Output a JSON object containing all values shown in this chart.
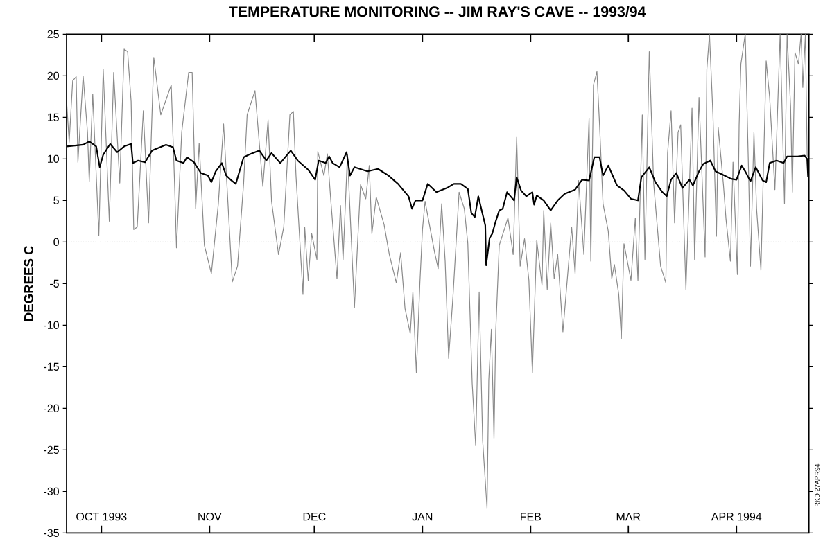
{
  "chart_data": {
    "type": "line",
    "title": "TEMPERATURE MONITORING -- JIM RAY'S CAVE -- 1993/94",
    "ylabel": "DEGREES C",
    "annotations": [
      "RKD 27APR94"
    ],
    "xlim": [
      "1993-09-21",
      "1994-04-21T18:00"
    ],
    "xticks": [
      {
        "value": "1993-10-01",
        "label": "OCT 1993"
      },
      {
        "value": "1993-11-01",
        "label": "NOV"
      },
      {
        "value": "1993-12-01",
        "label": "DEC"
      },
      {
        "value": "1994-01-01",
        "label": "JAN"
      },
      {
        "value": "1994-02-01",
        "label": "FEB"
      },
      {
        "value": "1994-03-01",
        "label": "MAR"
      },
      {
        "value": "1994-04-01",
        "label": "APR 1994"
      }
    ],
    "ylim": [
      -35,
      25
    ],
    "yticks": [
      -35,
      -30,
      -25,
      -20,
      -15,
      -10,
      -5,
      0,
      5,
      10,
      15,
      20,
      25
    ],
    "ref_lines": [
      {
        "axis": "y",
        "value": 0,
        "color": "#808080",
        "line_style": "dotted"
      }
    ],
    "series": [
      {
        "color": "#8a8a8a",
        "x": [
          "1993-09-21",
          "1993-09-21T18:00",
          "1993-09-22T18:00",
          "1993-09-23T18:00",
          "1993-09-24T06:00",
          "1993-09-25T18:00",
          "1993-09-27",
          "1993-09-27T12:00",
          "1993-09-28T12:00",
          "1993-09-30T06:00",
          "1993-10-01T12:00",
          "1993-10-03T06:00",
          "1993-10-04T12:00",
          "1993-10-06T06:00",
          "1993-10-07T12:00",
          "1993-10-08T12:00",
          "1993-10-09T12:00",
          "1993-10-10T06:00",
          "1993-10-11T06:00",
          "1993-10-13",
          "1993-10-14T12:00",
          "1993-10-16",
          "1993-10-18",
          "1993-10-21",
          "1993-10-22",
          "1993-10-22T12:00",
          "1993-10-24",
          "1993-10-26",
          "1993-10-27",
          "1993-10-28",
          "1993-10-29",
          "1993-10-30T12:00",
          "1993-11-01T12:00",
          "1993-11-03T12:00",
          "1993-11-05",
          "1993-11-07T12:00",
          "1993-11-09",
          "1993-11-10T18:00",
          "1993-11-11T18:00",
          "1993-11-14",
          "1993-11-16T06:00",
          "1993-11-17T18:00",
          "1993-11-18T18:00",
          "1993-11-20T18:00",
          "1993-11-22T06:00",
          "1993-11-24",
          "1993-11-25",
          "1993-11-25T18:00",
          "1993-11-27T18:00",
          "1993-11-28T06:00",
          "1993-11-29T06:00",
          "1993-11-30T06:00",
          "1993-12-01T18:00",
          "1993-12-02",
          "1993-12-03T18:00",
          "1993-12-04T18:00",
          "1993-12-05T18:00",
          "1993-12-07T12:00",
          "1993-12-08T12:00",
          "1993-12-09T06:00",
          "1993-12-10T12:00",
          "1993-12-12T12:00",
          "1993-12-13T06:00",
          "1993-12-14T06:00",
          "1993-12-15T18:00",
          "1993-12-16T18:00",
          "1993-12-17T12:00",
          "1993-12-18T18:00",
          "1993-12-21",
          "1993-12-22T12:00",
          "1993-12-24T12:00",
          "1993-12-25T18:00",
          "1993-12-27",
          "1993-12-28T12:00",
          "1993-12-29T06:00",
          "1993-12-30T06:00",
          "1993-12-31T06:00",
          "1994-01-01",
          "1994-01-01T18:00",
          "1994-01-04T12:00",
          "1994-01-05T12:00",
          "1994-01-06T12:00",
          "1994-01-07T12:00",
          "1994-01-08T12:00",
          "1994-01-09T18:00",
          "1994-01-11T12:00",
          "1994-01-13",
          "1994-01-14",
          "1994-01-15T06:00",
          "1994-01-16T06:00",
          "1994-01-17T06:00",
          "1994-01-18T06:00",
          "1994-01-19T12:00",
          "1994-01-20",
          "1994-01-20T18:00",
          "1994-01-21T12:00",
          "1994-01-22",
          "1994-01-23",
          "1994-01-25T12:00",
          "1994-01-27",
          "1994-01-28",
          "1994-01-29",
          "1994-01-30T06:00",
          "1994-01-31T12:00",
          "1994-02-01T12:00",
          "1994-02-02T18:00",
          "1994-02-04T06:00",
          "1994-02-04T18:00",
          "1994-02-05T18:00",
          "1994-02-06T18:00",
          "1994-02-07T18:00",
          "1994-02-08T18:00",
          "1994-02-10T06:00",
          "1994-02-12T18:00",
          "1994-02-13T18:00",
          "1994-02-14T18:00",
          "1994-02-16T06:00",
          "1994-02-17T18:00",
          "1994-02-18T06:00",
          "1994-02-19",
          "1994-02-20",
          "1994-02-20T18:00",
          "1994-02-21T18:00",
          "1994-02-23T06:00",
          "1994-02-24T06:00",
          "1994-02-25",
          "1994-02-26T06:00",
          "1994-02-27",
          "1994-02-27T18:00",
          "1994-03-01T18:00",
          "1994-03-03",
          "1994-03-03T18:00",
          "1994-03-05",
          "1994-03-05T18:00",
          "1994-03-07",
          "1994-03-08T06:00",
          "1994-03-10T06:00",
          "1994-03-11T18:00",
          "1994-03-12T06:00",
          "1994-03-13T06:00",
          "1994-03-14T06:00",
          "1994-03-15T06:00",
          "1994-03-16",
          "1994-03-17T12:00",
          "1994-03-19T06:00",
          "1994-03-20",
          "1994-03-21T06:00",
          "1994-03-23",
          "1994-03-23T12:00",
          "1994-03-24T06:00",
          "1994-03-25T06:00",
          "1994-03-26T06:00",
          "1994-03-26T18:00",
          "1994-03-28T06:00",
          "1994-03-29",
          "1994-03-30T06:00",
          "1994-03-31",
          "1994-04-01T06:00",
          "1994-04-01T18:00",
          "1994-04-02T06:00",
          "1994-04-03T12:00",
          "1994-04-04T12:00",
          "1994-04-05",
          "1994-04-06",
          "1994-04-06T18:00",
          "1994-04-08",
          "1994-04-09T12:00",
          "1994-04-10T12:00",
          "1994-04-12",
          "1994-04-13T12:00",
          "1994-04-14T18:00",
          "1994-04-15T12:00",
          "1994-04-16T12:00",
          "1994-04-17",
          "1994-04-17T18:00",
          "1994-04-18T18:00",
          "1994-04-19T12:00",
          "1994-04-20",
          "1994-04-20T18:00",
          "1994-04-21T06:00"
        ],
        "values": [
          17,
          12,
          19.4,
          19.9,
          9.6,
          20,
          13.2,
          7.3,
          17.8,
          0.8,
          20.8,
          2.5,
          20.4,
          7.1,
          23.2,
          22.9,
          16.9,
          1.5,
          1.8,
          15.8,
          2.3,
          22.2,
          15.3,
          18.9,
          6.5,
          -0.7,
          13.2,
          20.4,
          20.4,
          4,
          11.9,
          -0.4,
          -3.8,
          4.6,
          14.2,
          -4.8,
          -2.9,
          7.1,
          15.3,
          18.2,
          6.7,
          14.7,
          4.9,
          -1.5,
          1.8,
          15.3,
          15.7,
          8,
          -6.3,
          1.8,
          -4.6,
          1,
          -2.1,
          10.9,
          8,
          10.6,
          4.9,
          -4.4,
          4.4,
          -2.1,
          10.5,
          -7.9,
          -1.5,
          6.9,
          5.2,
          9.2,
          1,
          5.4,
          2.1,
          -1.5,
          -4.9,
          -1.3,
          -8,
          -11,
          -6,
          -15.7,
          -5,
          1.5,
          4.9,
          -1.3,
          -3.2,
          4.6,
          -2.3,
          -14,
          -6.5,
          6,
          4,
          -0.2,
          -17,
          -24.5,
          -6,
          -23.9,
          -32,
          -16.6,
          -10.5,
          -23.6,
          -10.7,
          -0.4,
          2.9,
          -1.5,
          12.6,
          -2.9,
          0.4,
          -4.6,
          -15.7,
          0.2,
          -5.2,
          3.8,
          -5.7,
          2.3,
          -4.4,
          -1.5,
          -10.8,
          1.8,
          -3.8,
          7.4,
          -1.5,
          14.9,
          -2.3,
          18.9,
          20.5,
          14.1,
          4.6,
          1.3,
          -4.4,
          -2.7,
          -6.3,
          -11.6,
          -0.2,
          -4.6,
          2.9,
          -4.6,
          15.3,
          -2.1,
          22.9,
          7.1,
          -2.9,
          -4.9,
          10.7,
          15.8,
          2.3,
          13.2,
          14.1,
          -5.7,
          16.1,
          -2.1,
          17.4,
          -1.8,
          20.8,
          25,
          15.3,
          0.7,
          13.8,
          6.9,
          2.7,
          -2.3,
          9.6,
          -3.9,
          14.1,
          21.4,
          25,
          7.7,
          -2.9,
          13.2,
          4,
          -3.4,
          21.8,
          17.4,
          6.3,
          25,
          4.6,
          25,
          16.3,
          6,
          22.8,
          21.4,
          25,
          18.6,
          25,
          10.2
        ]
      },
      {
        "color": "#000000",
        "x": [
          "1993-09-21",
          "1993-09-25T18:00",
          "1993-09-27T12:00",
          "1993-09-29T12:00",
          "1993-09-30T12:00",
          "1993-10-01T12:00",
          "1993-10-03T12:00",
          "1993-10-05T12:00",
          "1993-10-07T12:00",
          "1993-10-09T12:00",
          "1993-10-10",
          "1993-10-11T12:00",
          "1993-10-13T12:00",
          "1993-10-15T12:00",
          "1993-10-19T12:00",
          "1993-10-21T12:00",
          "1993-10-22T12:00",
          "1993-10-24T12:00",
          "1993-10-25T12:00",
          "1993-10-27T12:00",
          "1993-10-29T12:00",
          "1993-10-31T12:00",
          "1993-11-01T12:00",
          "1993-11-02T18:00",
          "1993-11-04T12:00",
          "1993-11-05T18:00",
          "1993-11-07",
          "1993-11-08T12:00",
          "1993-11-10T18:00",
          "1993-11-12T06:00",
          "1993-11-15T06:00",
          "1993-11-17T06:00",
          "1993-11-18T18:00",
          "1993-11-21T06:00",
          "1993-11-24T06:00",
          "1993-11-26T06:00",
          "1993-11-29T06:00",
          "1993-12-01T06:00",
          "1993-12-02T06:00",
          "1993-12-04T06:00",
          "1993-12-05T06:00",
          "1993-12-06T06:00",
          "1993-12-08T06:00",
          "1993-12-10T06:00",
          "1993-12-11T06:00",
          "1993-12-12T12:00",
          "1993-12-16T06:00",
          "1993-12-19T06:00",
          "1993-12-22T06:00",
          "1993-12-25",
          "1993-12-28",
          "1993-12-29",
          "1993-12-30",
          "1994-01-01",
          "1994-01-02T12:00",
          "1994-01-05",
          "1994-01-08",
          "1994-01-10",
          "1994-01-12",
          "1994-01-14",
          "1994-01-15",
          "1994-01-16",
          "1994-01-17",
          "1994-01-19",
          "1994-01-19T06:00",
          "1994-01-20T06:00",
          "1994-01-21",
          "1994-01-22",
          "1994-01-23",
          "1994-01-24",
          "1994-01-25T06:00",
          "1994-01-27T06:00",
          "1994-01-28",
          "1994-01-29T06:00",
          "1994-01-30T18:00",
          "1994-02-01T12:00",
          "1994-02-02",
          "1994-02-02T18:00",
          "1994-02-04T18:00",
          "1994-02-06T18:00",
          "1994-02-08T18:00",
          "1994-02-10T18:00",
          "1994-02-13T18:00",
          "1994-02-15T18:00",
          "1994-02-17T18:00",
          "1994-02-19T06:00",
          "1994-02-20T18:00",
          "1994-02-21T18:00",
          "1994-02-23T06:00",
          "1994-02-25T18:00",
          "1994-02-27T18:00",
          "1994-03-01T18:00",
          "1994-03-03T18:00",
          "1994-03-04T18:00",
          "1994-03-07",
          "1994-03-08T18:00",
          "1994-03-10T18:00",
          "1994-03-12",
          "1994-03-13T06:00",
          "1994-03-14T18:00",
          "1994-03-16T12:00",
          "1994-03-18T12:00",
          "1994-03-19T12:00",
          "1994-03-21T06:00",
          "1994-03-22T12:00",
          "1994-03-24T12:00",
          "1994-03-26",
          "1994-03-28T12:00",
          "1994-03-30T12:00",
          "1994-04-01",
          "1994-04-02T12:00",
          "1994-04-03T12:00",
          "1994-04-05",
          "1994-04-06T12:00",
          "1994-04-08T12:00",
          "1994-04-09T12:00",
          "1994-04-10T12:00",
          "1994-04-12T12:00",
          "1994-04-14T12:00",
          "1994-04-15T12:00",
          "1994-04-18T12:00",
          "1994-04-20T12:00",
          "1994-04-21T06:00",
          "1994-04-21T12:00"
        ],
        "values": [
          11.5,
          11.7,
          12.1,
          11.5,
          9,
          10.5,
          11.8,
          10.8,
          11.5,
          11.8,
          9.5,
          9.8,
          9.6,
          11,
          11.7,
          11.4,
          9.8,
          9.5,
          10.2,
          9.6,
          8.3,
          8,
          7.2,
          8.5,
          9.5,
          8,
          7.5,
          7,
          10.2,
          10.5,
          11,
          9.8,
          10.7,
          9.5,
          11,
          9.8,
          8.7,
          7.5,
          9.8,
          9.5,
          10.3,
          9.5,
          9,
          10.8,
          8,
          9,
          8.5,
          8.8,
          8,
          7,
          5.5,
          4,
          5,
          5,
          7,
          6,
          6.5,
          7,
          7,
          6.4,
          3.5,
          3,
          5.5,
          2,
          -2.8,
          0.5,
          1,
          2.5,
          3.8,
          4,
          6,
          5,
          7.8,
          6.2,
          5.5,
          6,
          4.5,
          5.6,
          5,
          3.8,
          5,
          5.8,
          6.3,
          7.5,
          7.4,
          10.2,
          10.2,
          8,
          9.2,
          6.8,
          6.2,
          5.2,
          5,
          7.8,
          9,
          7.2,
          6,
          5.5,
          7.5,
          8.3,
          6.5,
          7.5,
          6.8,
          8.5,
          9.4,
          9.8,
          8.5,
          8,
          7.6,
          7.5,
          9.2,
          8.5,
          7.3,
          9,
          7.4,
          7.2,
          9.5,
          9.8,
          9.5,
          10.3,
          10.3,
          10.4,
          10,
          7.8
        ]
      }
    ]
  }
}
